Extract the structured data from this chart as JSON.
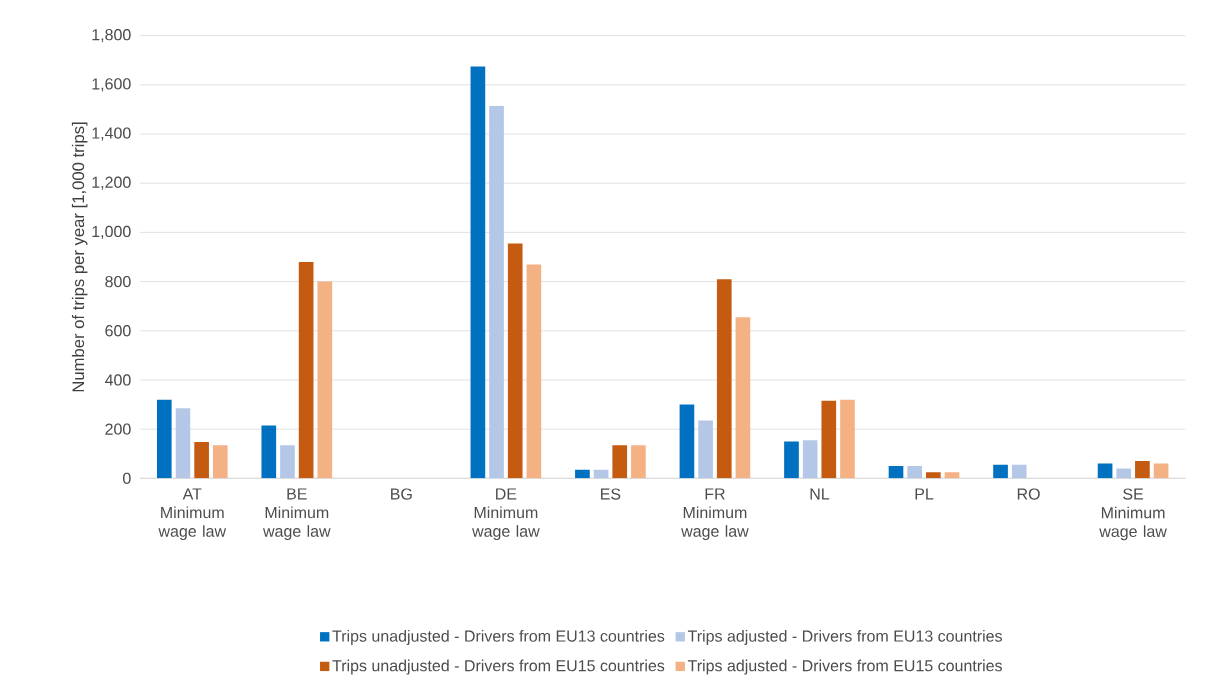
{
  "chart_data": {
    "type": "bar",
    "ylabel": "Number of trips per year [1,000 trips]",
    "categories": [
      "AT Minimum wage law",
      "BE Minimum wage law",
      "BG",
      "DE Minimum wage law",
      "ES",
      "FR Minimum wage law",
      "NL",
      "PL",
      "RO",
      "SE Minimum wage law"
    ],
    "series": [
      {
        "name": "Trips unadjusted - Drivers from EU13 countries",
        "color": "#0070c0",
        "values": [
          320,
          215,
          null,
          1675,
          35,
          300,
          150,
          50,
          55,
          60
        ]
      },
      {
        "name": "Trips adjusted - Drivers from EU13 countries",
        "color": "#b4c7e7",
        "values": [
          285,
          135,
          null,
          1515,
          35,
          235,
          155,
          50,
          55,
          40
        ]
      },
      {
        "name": "Trips unadjusted - Drivers from EU15 countries",
        "color": "#c55a11",
        "values": [
          148,
          880,
          null,
          955,
          135,
          810,
          315,
          25,
          null,
          70
        ]
      },
      {
        "name": "Trips adjusted - Drivers from EU15 countries",
        "color": "#f4b183",
        "values": [
          135,
          800,
          null,
          870,
          135,
          655,
          320,
          25,
          null,
          60
        ]
      }
    ],
    "ylim": [
      0,
      1800
    ],
    "yticks": [
      0,
      {
        "value": 200,
        "label": "200"
      },
      {
        "value": 400,
        "label": "400"
      },
      {
        "value": 600,
        "label": "600"
      },
      {
        "value": 800,
        "label": "800"
      },
      {
        "value": 1000,
        "label": "1,000"
      },
      {
        "value": 1200,
        "label": "1,200"
      },
      {
        "value": 1400,
        "label": "1,400"
      },
      {
        "value": 1600,
        "label": "1,600"
      },
      {
        "value": 1800,
        "label": "1,800"
      }
    ],
    "grid": "y",
    "legend": "bottom"
  }
}
